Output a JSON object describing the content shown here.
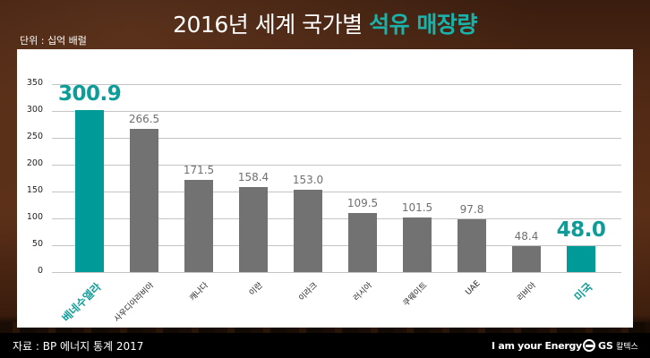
{
  "header": {
    "title_prefix": "2016년 세계 국가별 ",
    "title_highlight": "석유 매장량",
    "unit_label": "단위 : 십억 배럴"
  },
  "footer": {
    "source": "자료 : BP 에너지 통계 2017",
    "slogan": "I am your Energy",
    "logo_gs": "GS",
    "logo_korean": "칼텍스"
  },
  "colors": {
    "highlight": "#009b98",
    "bar_default": "#727272",
    "title_highlight": "#19b3ac"
  },
  "chart_data": {
    "type": "bar",
    "title": "2016년 세계 국가별 석유 매장량",
    "unit": "십억 배럴",
    "xlabel": "",
    "ylabel": "",
    "ylim": [
      0,
      350
    ],
    "yticks": [
      0,
      50,
      100,
      150,
      200,
      250,
      300,
      350
    ],
    "grid": true,
    "legend": null,
    "categories": [
      "베네수엘라",
      "사우디아라비아",
      "캐나다",
      "이란",
      "이라크",
      "러시아",
      "쿠웨이트",
      "UAE",
      "리비아",
      "미국"
    ],
    "values": [
      300.9,
      266.5,
      171.5,
      158.4,
      153.0,
      109.5,
      101.5,
      97.8,
      48.4,
      48.0
    ],
    "value_labels": [
      "300.9",
      "266.5",
      "171.5",
      "158.4",
      "153.0",
      "109.5",
      "101.5",
      "97.8",
      "48.4",
      "48.0"
    ],
    "highlighted": [
      "베네수엘라",
      "미국"
    ],
    "source": "BP 에너지 통계 2017"
  }
}
